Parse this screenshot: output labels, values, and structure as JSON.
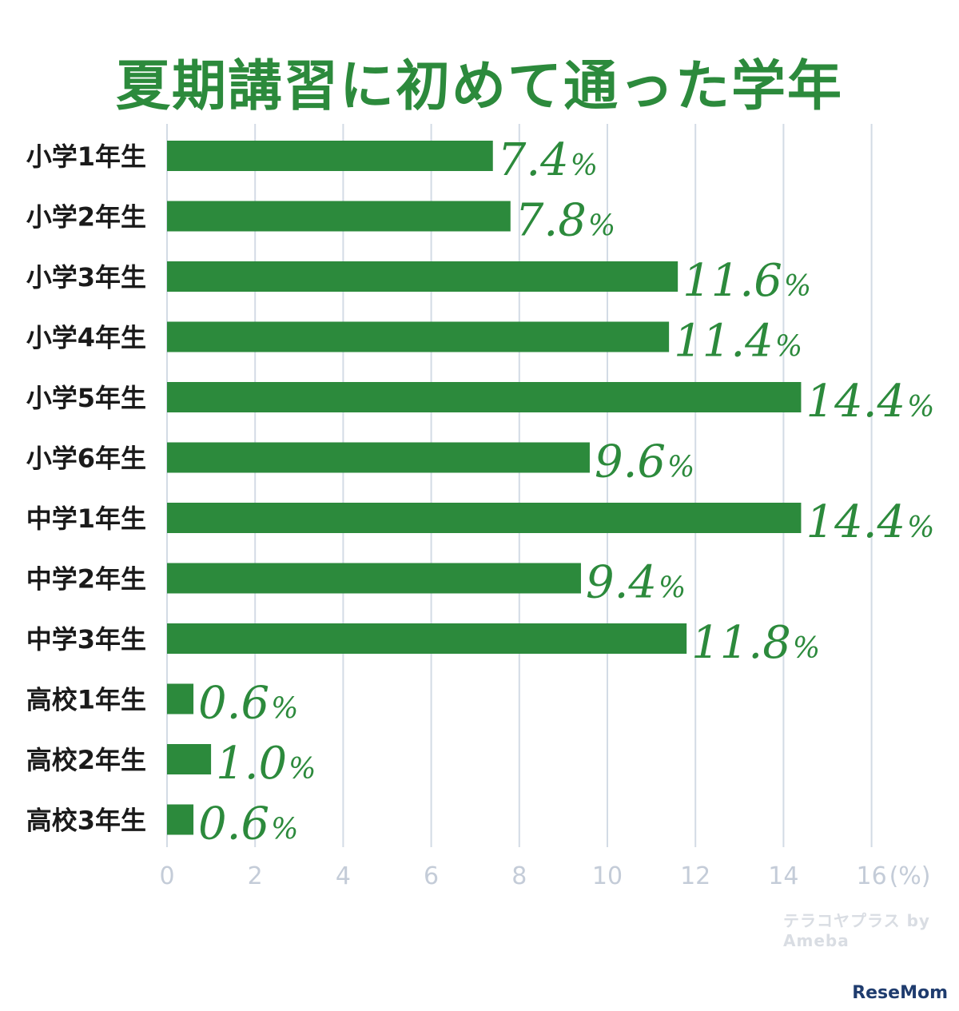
{
  "colors": {
    "bar": "#2c8a3c",
    "title": "#2c8a3c",
    "grid": "#d3dbe5",
    "tick": "#c4ccd8",
    "category": "#1a1a1a"
  },
  "chart_data": {
    "type": "bar",
    "orientation": "horizontal",
    "title": "夏期講習に初めて通った学年",
    "categories": [
      "小学1年生",
      "小学2年生",
      "小学3年生",
      "小学4年生",
      "小学5年生",
      "小学6年生",
      "中学1年生",
      "中学2年生",
      "中学3年生",
      "高校1年生",
      "高校2年生",
      "高校3年生"
    ],
    "values": [
      7.4,
      7.8,
      11.6,
      11.4,
      14.4,
      9.6,
      14.4,
      9.4,
      11.8,
      0.6,
      1.0,
      0.6
    ],
    "value_labels": [
      "7.4",
      "7.8",
      "11.6",
      "11.4",
      "14.4",
      "9.6",
      "14.4",
      "9.4",
      "11.8",
      "0.6",
      "1.0",
      "0.6"
    ],
    "value_suffix": "%",
    "xlim": [
      0,
      16
    ],
    "xticks": [
      "0",
      "2",
      "4",
      "6",
      "8",
      "10",
      "12",
      "14",
      "16"
    ],
    "x_unit": "(%)",
    "grid": true,
    "legend": "none"
  },
  "watermarks": {
    "source": "テラコヤプラス by Ameba",
    "publisher": "ReseMom"
  }
}
